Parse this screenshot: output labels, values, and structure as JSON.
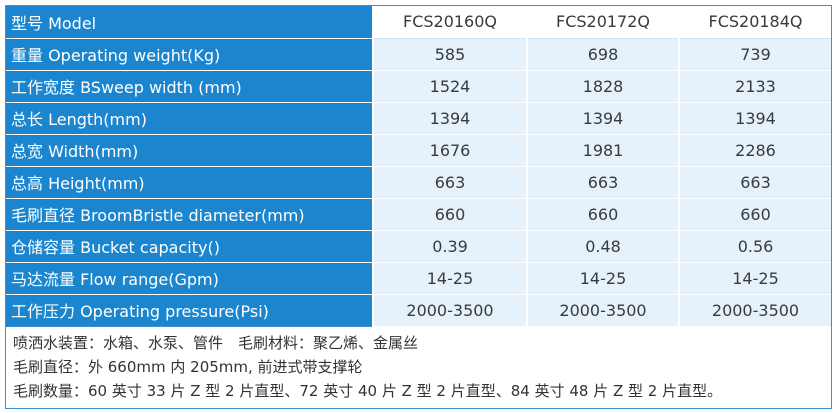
{
  "columns": [
    "FCS20160Q",
    "FCS20172Q",
    "FCS20184Q"
  ],
  "header_label": "型号 Model",
  "rows": [
    {
      "label": "重量 Operating weight(Kg)",
      "values": [
        "585",
        "698",
        "739"
      ]
    },
    {
      "label": "工作宽度 BSweep width (mm)",
      "values": [
        "1524",
        "1828",
        "2133"
      ]
    },
    {
      "label": "总长 Length(mm)",
      "values": [
        "1394",
        "1394",
        "1394"
      ]
    },
    {
      "label": "总宽 Width(mm)",
      "values": [
        "1676",
        "1981",
        "2286"
      ]
    },
    {
      "label": "总高 Height(mm)",
      "values": [
        "663",
        "663",
        "663"
      ]
    },
    {
      "label": "毛刷直径 BroomBristle diameter(mm)",
      "values": [
        "660",
        "660",
        "660"
      ]
    },
    {
      "label": "仓储容量 Bucket capacity()",
      "values": [
        "0.39",
        "0.48",
        "0.56"
      ]
    },
    {
      "label": "马达流量 Flow range(Gpm)",
      "values": [
        "14-25",
        "14-25",
        "14-25"
      ]
    },
    {
      "label": "工作压力 Operating pressure(Psi)",
      "values": [
        "2000-3500",
        "2000-3500",
        "2000-3500"
      ]
    }
  ],
  "notes": [
    "喷洒水装置：水箱、水泵、管件　毛刷材料：聚乙烯、金属丝",
    "毛刷直径：外 660mm 内 205mm, 前进式带支撑轮",
    "毛刷数量：60 英寸 33 片 Z 型 2 片直型、72 英寸 40 片 Z 型 2 片直型、84 英寸 48 片 Z 型 2 片直型。"
  ],
  "colors": {
    "label_bg": "#1b86cf",
    "value_bg": "#e6f2fb",
    "border": "#3d8fd1"
  }
}
